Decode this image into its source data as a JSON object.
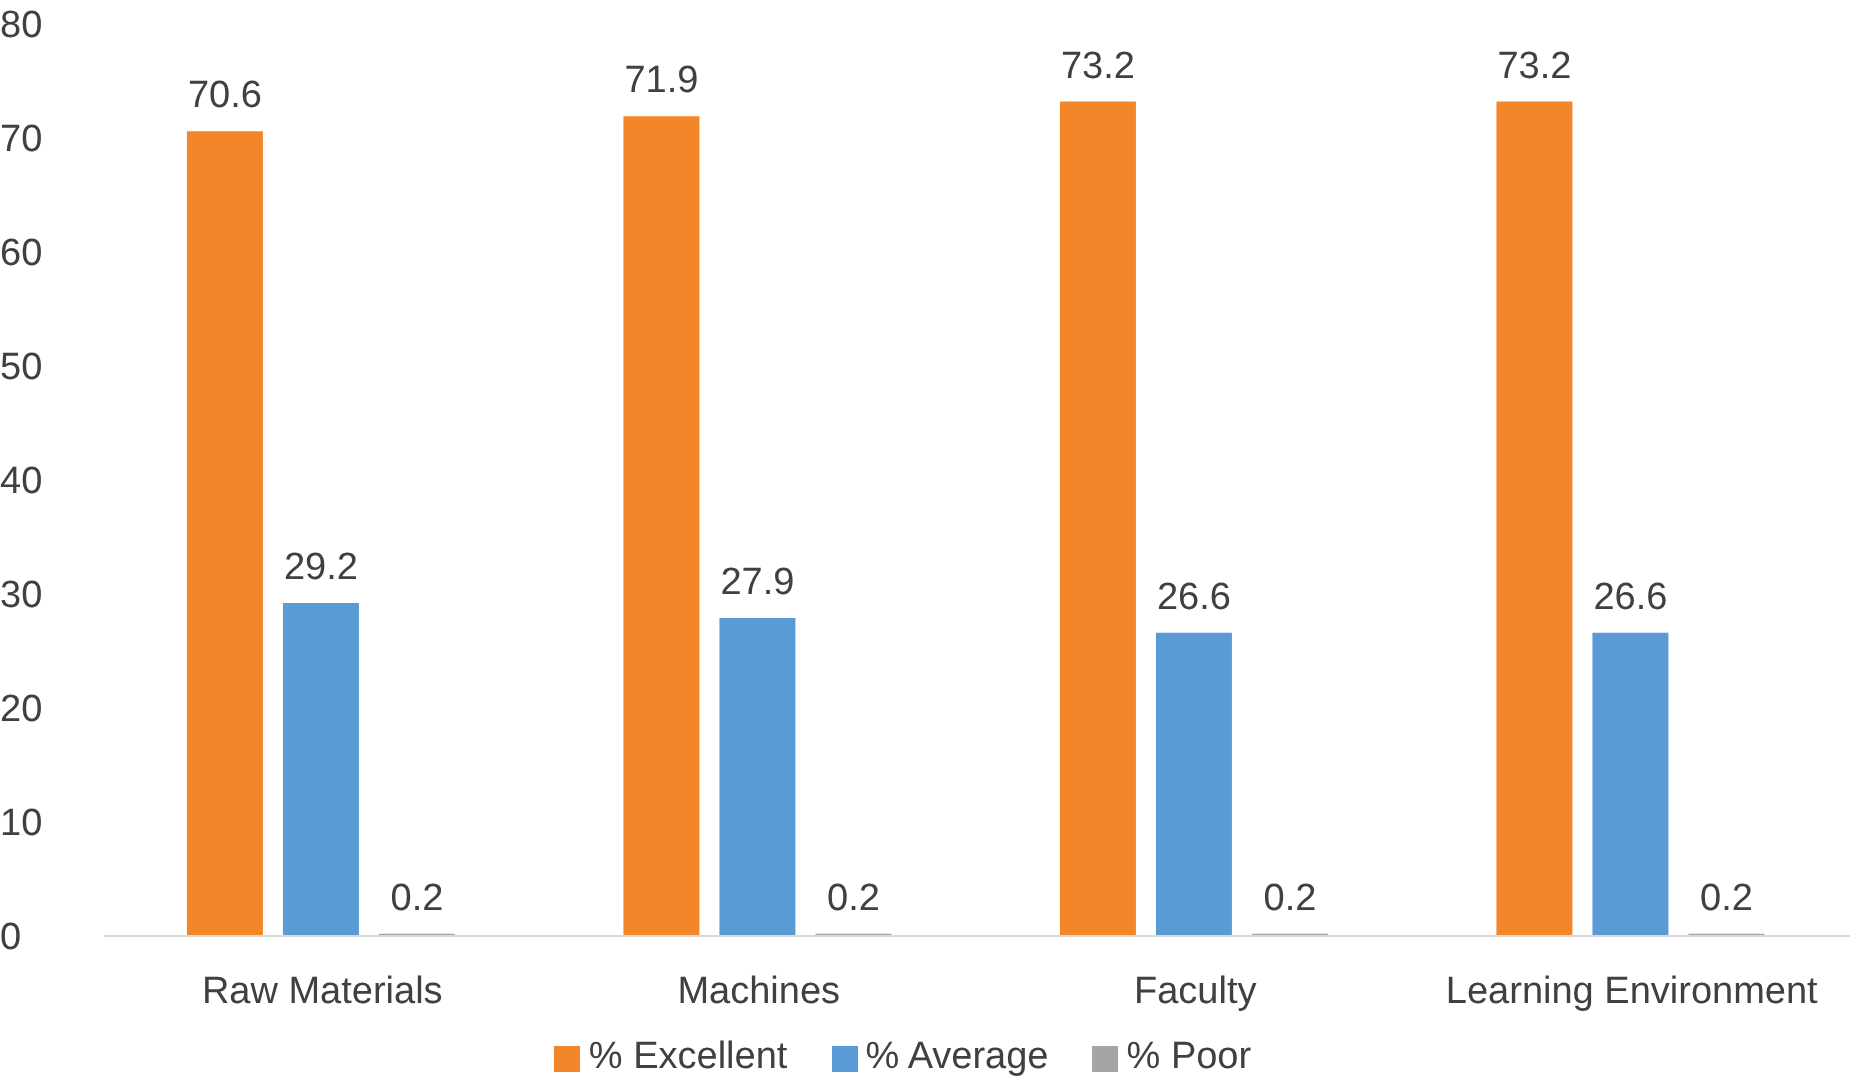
{
  "chart_data": {
    "type": "bar",
    "categories": [
      "Raw Materials",
      "Machines",
      "Faculty",
      "Learning Environment"
    ],
    "series": [
      {
        "name": "% Excellent",
        "color": "#f4862a",
        "values": [
          70.6,
          71.9,
          73.2,
          73.2
        ]
      },
      {
        "name": "% Average",
        "color": "#5b9bd5",
        "values": [
          29.2,
          27.9,
          26.6,
          26.6
        ]
      },
      {
        "name": "% Poor",
        "color": "#a5a5a5",
        "values": [
          0.2,
          0.2,
          0.2,
          0.2
        ]
      }
    ],
    "ylim": [
      0,
      80
    ],
    "yticks": [
      0,
      10,
      20,
      30,
      40,
      50,
      60,
      70,
      80
    ],
    "grid": false,
    "legend": "bottom",
    "data_labels": true
  }
}
